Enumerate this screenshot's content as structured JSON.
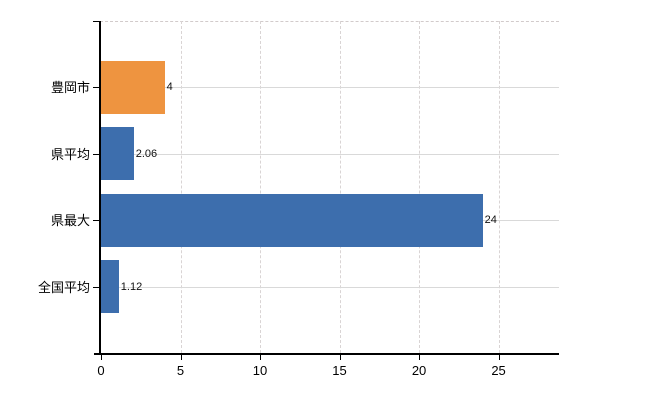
{
  "chart_data": {
    "type": "bar",
    "orientation": "horizontal",
    "title": "",
    "xlabel": "",
    "ylabel": "",
    "categories": [
      "豊岡市",
      "県平均",
      "県最大",
      "全国平均"
    ],
    "values": [
      4,
      2.06,
      24,
      1.12
    ],
    "value_labels": [
      "4",
      "2.06",
      "24",
      "1.12"
    ],
    "bar_colors": [
      "#ee9440",
      "#3d6ead",
      "#3d6ead",
      "#3d6ead"
    ],
    "x_ticks": [
      "0",
      "5",
      "10",
      "15",
      "20",
      "25"
    ],
    "x_tick_values": [
      0,
      5,
      10,
      15,
      20,
      25
    ],
    "xlim": [
      0,
      28.8
    ],
    "grid": true,
    "legend": false
  },
  "colors": {
    "orange_bar": "#ee9440",
    "blue_bar": "#3d6ead",
    "gridline": "#d9d9d9",
    "axis": "#000000",
    "text": "#000000",
    "background": "#ffffff"
  }
}
